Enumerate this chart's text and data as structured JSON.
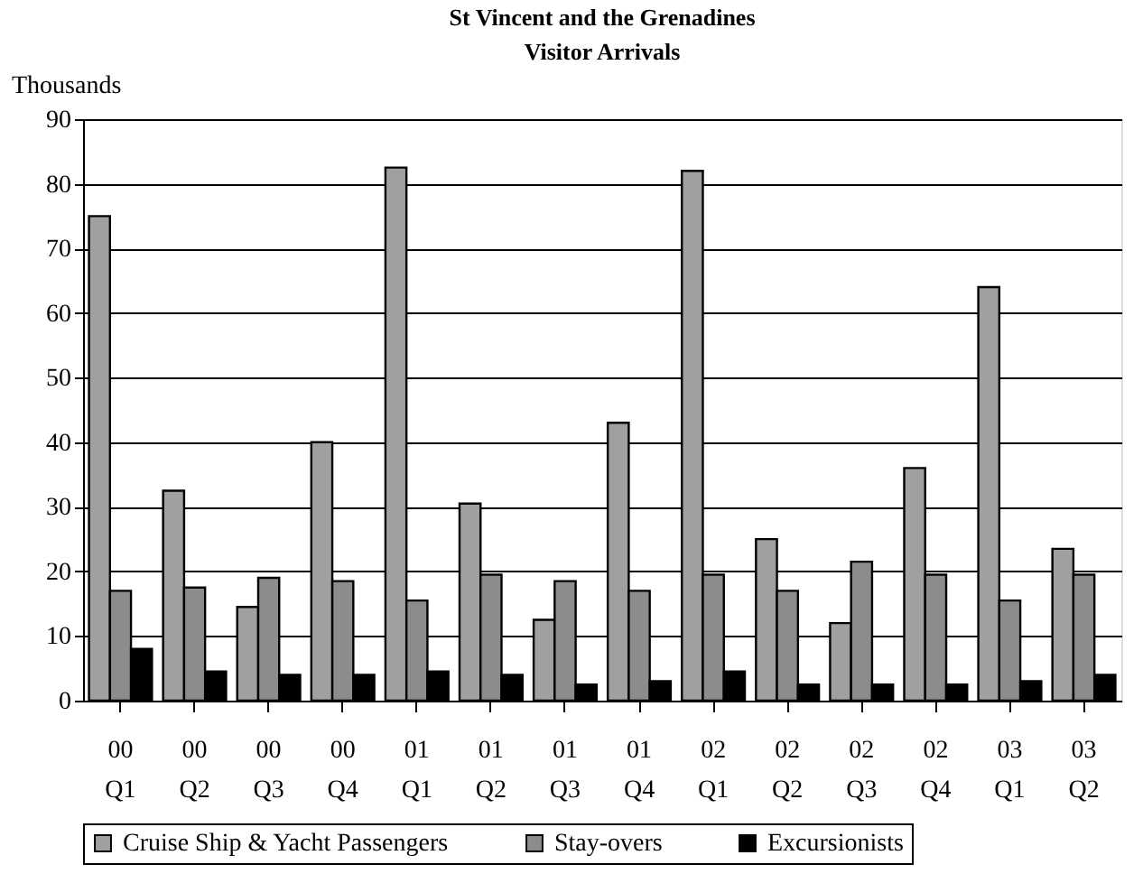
{
  "chart_data": {
    "type": "bar",
    "title": "St Vincent and the Grenadines",
    "subtitle": "Visitor Arrivals",
    "ylabel": "Thousands",
    "categories": [
      "00 Q1",
      "00 Q2",
      "00 Q3",
      "00 Q4",
      "01 Q1",
      "01 Q2",
      "01 Q3",
      "01 Q4",
      "02 Q1",
      "02 Q2",
      "02 Q3",
      "02 Q4",
      "03 Q1",
      "03 Q2"
    ],
    "series": [
      {
        "name": "Cruise Ship & Yacht Passengers",
        "color": "#a0a0a0",
        "values": [
          75,
          32.5,
          14.5,
          40,
          82.5,
          30.5,
          12.5,
          43,
          82,
          25,
          12,
          36,
          64,
          23.5
        ]
      },
      {
        "name": "Stay-overs",
        "color": "#8c8c8c",
        "values": [
          17,
          17.5,
          19,
          18.5,
          15.5,
          19.5,
          18.5,
          17,
          19.5,
          17,
          21.5,
          19.5,
          15.5,
          19.5
        ]
      },
      {
        "name": "Excursionists",
        "color": "#000000",
        "values": [
          8,
          4.5,
          4,
          4,
          4.5,
          4,
          2.5,
          3,
          4.5,
          2.5,
          2.5,
          2.5,
          3,
          4
        ]
      }
    ],
    "ylim": [
      0,
      90
    ],
    "yticks": [
      0,
      10,
      20,
      30,
      40,
      50,
      60,
      70,
      80,
      90
    ],
    "grid": "y",
    "legend": "bottom"
  }
}
